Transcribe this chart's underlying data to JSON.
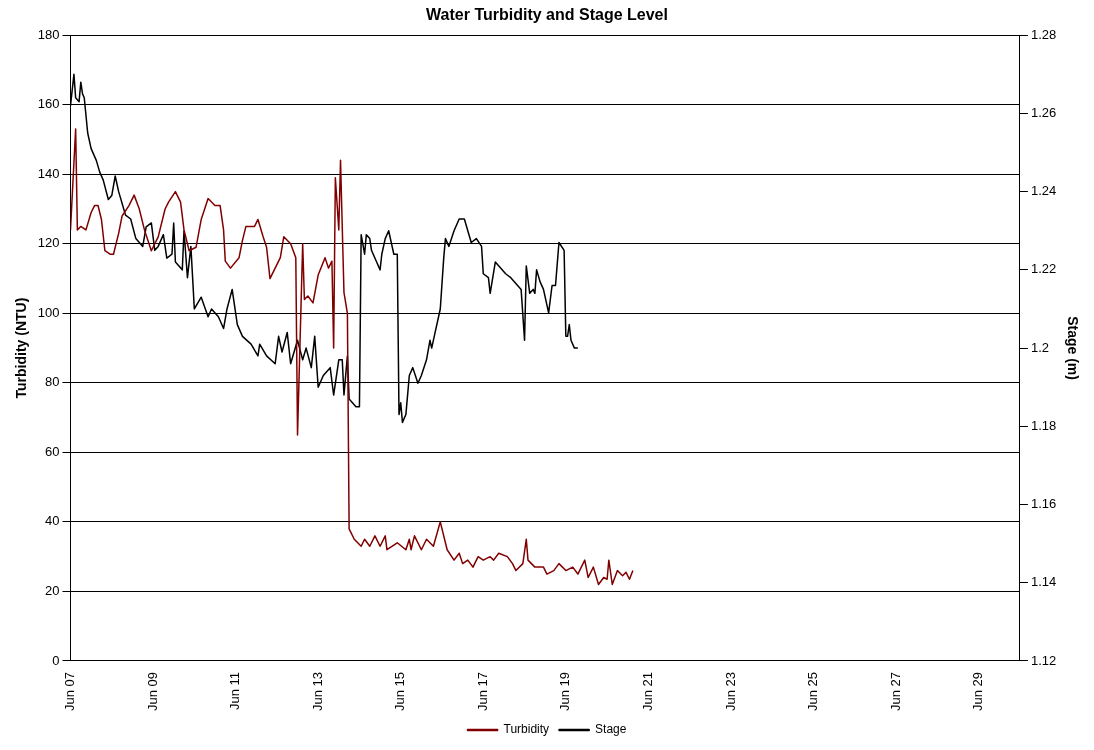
{
  "chart_data": {
    "type": "line",
    "title": "Water Turbidity and Stage Level",
    "ylabel": "Turbidity (NTU)",
    "y2label": "Stage (m)",
    "xlim": [
      "--06-07",
      "--06-30"
    ],
    "xticks": [
      {
        "value": "--06-07",
        "label": "Jun 07"
      },
      {
        "value": "--06-09",
        "label": "Jun 09"
      },
      {
        "value": "--06-11",
        "label": "Jun 11"
      },
      {
        "value": "--06-13",
        "label": "Jun 13"
      },
      {
        "value": "--06-15",
        "label": "Jun 15"
      },
      {
        "value": "--06-17",
        "label": "Jun 17"
      },
      {
        "value": "--06-19",
        "label": "Jun 19"
      },
      {
        "value": "--06-21",
        "label": "Jun 21"
      },
      {
        "value": "--06-23",
        "label": "Jun 23"
      },
      {
        "value": "--06-25",
        "label": "Jun 25"
      },
      {
        "value": "--06-27",
        "label": "Jun 27"
      },
      {
        "value": "--06-29",
        "label": "Jun 29"
      }
    ],
    "ylim": [
      0,
      180
    ],
    "yticks": [
      0,
      20,
      40,
      60,
      80,
      100,
      120,
      140,
      160,
      180
    ],
    "y2lim": [
      1.12,
      1.28
    ],
    "y2ticks": [
      1.12,
      1.14,
      1.16,
      1.18,
      1.2,
      1.22,
      1.24,
      1.26,
      1.28
    ],
    "grid": "y",
    "legend": "bottom",
    "marker": "none",
    "line_style": "solid",
    "series": [
      {
        "name": "Turbidity",
        "color": "#800000",
        "x": [
          "--06-07T00:00",
          "--06-07T03:00",
          "--06-07T04:00",
          "--06-07T06:00",
          "--06-07T09:00",
          "--06-07T12:00",
          "--06-07T14:00",
          "--06-07T16:00",
          "--06-07T18:00",
          "--06-07T20:00",
          "--06-07T23:00",
          "--06-08T01:00",
          "--06-08T04:00",
          "--06-08T06:00",
          "--06-08T10:00",
          "--06-08T13:00",
          "--06-08T16:00",
          "--06-08T19:00",
          "--06-08T23:00",
          "--06-09T03:00",
          "--06-09T07:00",
          "--06-09T09:00",
          "--06-09T13:00",
          "--06-09T16:00",
          "--06-09T18:00",
          "--06-09T21:00",
          "--06-10T01:00",
          "--06-10T04:00",
          "--06-10T08:00",
          "--06-10T12:00",
          "--06-10T15:00",
          "--06-10T17:00",
          "--06-10T18:00",
          "--06-10T21:00",
          "--06-11T02:00",
          "--06-11T04:00",
          "--06-11T06:00",
          "--06-11T11:00",
          "--06-11T13:00",
          "--06-11T16:00",
          "--06-11T18:00",
          "--06-11T20:00",
          "--06-12T00:00",
          "--06-12T02:00",
          "--06-12T04:00",
          "--06-12T08:00",
          "--06-12T11:00",
          "--06-12T12:00",
          "--06-12T15:00",
          "--06-12T16:00",
          "--06-12T18:00",
          "--06-12T21:00",
          "--06-13T00:00",
          "--06-13T04:00",
          "--06-13T06:00",
          "--06-13T08:00",
          "--06-13T09:00",
          "--06-13T10:00",
          "--06-13T12:00",
          "--06-13T13:00",
          "--06-13T15:00",
          "--06-13T17:00",
          "--06-13T18:00",
          "--06-13T21:00",
          "--06-14T01:00",
          "--06-14T03:00",
          "--06-14T06:00",
          "--06-14T09:00",
          "--06-14T12:00",
          "--06-14T15:00",
          "--06-14T16:00",
          "--06-14T22:00",
          "--06-15T03:00",
          "--06-15T05:00",
          "--06-15T06:00",
          "--06-15T08:00",
          "--06-15T12:00",
          "--06-15T15:00",
          "--06-15T19:00",
          "--06-15T23:00",
          "--06-16T03:00",
          "--06-16T07:00",
          "--06-16T10:00",
          "--06-16T12:00",
          "--06-16T15:00",
          "--06-16T18:00",
          "--06-16T21:00",
          "--06-17T00:00",
          "--06-17T04:00",
          "--06-17T06:00",
          "--06-17T09:00",
          "--06-17T14:00",
          "--06-17T17:00",
          "--06-17T19:00",
          "--06-17T23:00",
          "--06-18T01:00",
          "--06-18T02:00",
          "--06-18T06:00",
          "--06-18T11:00",
          "--06-18T13:00",
          "--06-18T17:00",
          "--06-18T20:00",
          "--06-19T00:00",
          "--06-19T04:00",
          "--06-19T07:00",
          "--06-19T11:00",
          "--06-19T13:00",
          "--06-19T16:00",
          "--06-19T19:00",
          "--06-19T22:00",
          "--06-20T00:00",
          "--06-20T01:00",
          "--06-20T03:00",
          "--06-20T06:00",
          "--06-20T09:00",
          "--06-20T11:00",
          "--06-20T13:00",
          "--06-20T15:00"
        ],
        "values": [
          124,
          153,
          124,
          125,
          124,
          129,
          131,
          131,
          127,
          118,
          117,
          117,
          123,
          128,
          131,
          134,
          130,
          124,
          118,
          122,
          130,
          132,
          135,
          132,
          124,
          118,
          119,
          127,
          133,
          131,
          131,
          124,
          115,
          113,
          116,
          121,
          125,
          125,
          127,
          122,
          119,
          110,
          114,
          116,
          122,
          120,
          116,
          65,
          120,
          104,
          105,
          103,
          111,
          116,
          113,
          115,
          90,
          139,
          124,
          144,
          106,
          100,
          38,
          35,
          33,
          35,
          33,
          36,
          33,
          36,
          32,
          34,
          32,
          35,
          32,
          36,
          32,
          35,
          33,
          40,
          32,
          29,
          31,
          28,
          29,
          27,
          30,
          29,
          30,
          29,
          31,
          30,
          28,
          26,
          28,
          35,
          29,
          27,
          27,
          25,
          26,
          28,
          26,
          27,
          25,
          29,
          24,
          27,
          22,
          24,
          23.5,
          29,
          22,
          26,
          24.5,
          25.5,
          23.5,
          26
        ]
      },
      {
        "name": "Stage",
        "color": "#000000",
        "axis": "y2",
        "x": [
          "--06-07T00:00",
          "--06-07T02:00",
          "--06-07T03:00",
          "--06-07T05:00",
          "--06-07T06:00",
          "--06-07T07:00",
          "--06-07T08:00",
          "--06-07T10:00",
          "--06-07T12:00",
          "--06-07T15:00",
          "--06-07T17:00",
          "--06-07T19:00",
          "--06-07T22:00",
          "--06-08T00:00",
          "--06-08T02:00",
          "--06-08T04:00",
          "--06-08T08:00",
          "--06-08T11:00",
          "--06-08T14:00",
          "--06-08T18:00",
          "--06-08T20:00",
          "--06-08T23:00",
          "--06-09T01:00",
          "--06-09T03:00",
          "--06-09T06:00",
          "--06-09T08:00",
          "--06-09T11:00",
          "--06-09T12:00",
          "--06-09T13:00",
          "--06-09T17:00",
          "--06-09T18:00",
          "--06-09T20:00",
          "--06-09T22:00",
          "--06-10T00:00",
          "--06-10T04:00",
          "--06-10T08:00",
          "--06-10T10:00",
          "--06-10T14:00",
          "--06-10T17:00",
          "--06-10T19:00",
          "--06-10T22:00",
          "--06-11T01:00",
          "--06-11T04:00",
          "--06-11T09:00",
          "--06-11T13:00",
          "--06-11T14:00",
          "--06-11T18:00",
          "--06-11T23:00",
          "--06-12T01:00",
          "--06-12T03:00",
          "--06-12T06:00",
          "--06-12T08:00",
          "--06-12T12:00",
          "--06-12T15:00",
          "--06-12T17:00",
          "--06-12T20:00",
          "--06-12T22:00",
          "--06-13T00:00",
          "--06-13T03:00",
          "--06-13T07:00",
          "--06-13T09:00",
          "--06-13T12:00",
          "--06-13T14:00",
          "--06-13T15:00",
          "--06-13T17:00",
          "--06-13T18:00",
          "--06-13T22:00",
          "--06-14T00:00",
          "--06-14T01:00",
          "--06-14T03:00",
          "--06-14T04:00",
          "--06-14T06:00",
          "--06-14T07:00",
          "--06-14T10:00",
          "--06-14T12:00",
          "--06-14T13:00",
          "--06-14T15:00",
          "--06-14T17:00",
          "--06-14T20:00",
          "--06-14T22:00",
          "--06-14T23:00",
          "--06-15T00:00",
          "--06-15T01:00",
          "--06-15T03:00",
          "--06-15T05:00",
          "--06-15T07:00",
          "--06-15T10:00",
          "--06-15T12:00",
          "--06-15T15:00",
          "--06-15T17:00",
          "--06-15T18:00",
          "--06-15T20:00",
          "--06-15T23:00",
          "--06-16T01:00",
          "--06-16T02:00",
          "--06-16T04:00",
          "--06-16T07:00",
          "--06-16T10:00",
          "--06-16T13:00",
          "--06-16T15:00",
          "--06-16T17:00",
          "--06-16T20:00",
          "--06-16T23:00",
          "--06-17T00:00",
          "--06-17T03:00",
          "--06-17T04:00",
          "--06-17T07:00",
          "--06-17T13:00",
          "--06-17T16:00",
          "--06-17T22:00",
          "--06-18T00:00",
          "--06-18T01:00",
          "--06-18T03:00",
          "--06-18T05:00",
          "--06-18T06:00",
          "--06-18T07:00",
          "--06-18T09:00",
          "--06-18T11:00",
          "--06-18T14:00",
          "--06-18T16:00",
          "--06-18T18:00",
          "--06-18T20:00",
          "--06-18T23:00",
          "--06-19T00:00",
          "--06-19T01:00",
          "--06-19T02:00",
          "--06-19T03:00",
          "--06-19T05:00",
          "--06-19T07:00"
        ],
        "values": [
          1.262,
          1.27,
          1.264,
          1.263,
          1.268,
          1.265,
          1.264,
          1.255,
          1.251,
          1.248,
          1.245,
          1.243,
          1.238,
          1.239,
          1.244,
          1.24,
          1.234,
          1.233,
          1.228,
          1.226,
          1.231,
          1.232,
          1.225,
          1.226,
          1.229,
          1.223,
          1.224,
          1.232,
          1.222,
          1.22,
          1.23,
          1.218,
          1.226,
          1.21,
          1.213,
          1.208,
          1.21,
          1.208,
          1.205,
          1.21,
          1.215,
          1.206,
          1.203,
          1.201,
          1.198,
          1.201,
          1.198,
          1.196,
          1.203,
          1.199,
          1.204,
          1.196,
          1.202,
          1.197,
          1.2,
          1.195,
          1.203,
          1.19,
          1.193,
          1.195,
          1.188,
          1.197,
          1.197,
          1.188,
          1.198,
          1.187,
          1.185,
          1.185,
          1.229,
          1.224,
          1.229,
          1.228,
          1.225,
          1.222,
          1.22,
          1.224,
          1.228,
          1.23,
          1.224,
          1.224,
          1.183,
          1.186,
          1.181,
          1.183,
          1.193,
          1.195,
          1.191,
          1.193,
          1.197,
          1.202,
          1.2,
          1.204,
          1.21,
          1.223,
          1.228,
          1.226,
          1.23,
          1.233,
          1.233,
          1.23,
          1.227,
          1.228,
          1.226,
          1.219,
          1.218,
          1.214,
          1.222,
          1.219,
          1.218,
          1.215,
          1.202,
          1.221,
          1.214,
          1.215,
          1.214,
          1.22,
          1.217,
          1.215,
          1.209,
          1.216,
          1.216,
          1.227,
          1.225,
          1.203,
          1.203,
          1.206,
          1.202,
          1.2,
          1.2
        ]
      }
    ]
  }
}
